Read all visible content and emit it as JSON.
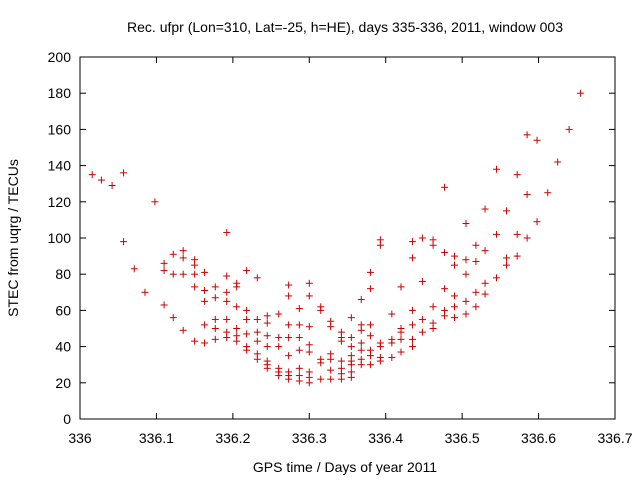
{
  "chart_data": {
    "type": "scatter",
    "title": "Rec. ufpr (Lon=310, Lat=-25, h=HE), days 335-336, 2011, window 003",
    "xlabel": "GPS time / Days of year 2011",
    "ylabel": "STEC from uqrg / TECUs",
    "xlim": [
      336,
      336.7
    ],
    "ylim": [
      0,
      200
    ],
    "xticks": [
      336,
      336.1,
      336.2,
      336.3,
      336.4,
      336.5,
      336.6,
      336.7
    ],
    "xtick_labels": [
      "336",
      "336.1",
      "336.2",
      "336.3",
      "336.4",
      "336.5",
      "336.6",
      "336.7"
    ],
    "yticks": [
      0,
      20,
      40,
      60,
      80,
      100,
      120,
      140,
      160,
      180,
      200
    ],
    "ytick_labels": [
      "0",
      "20",
      "40",
      "60",
      "80",
      "100",
      "120",
      "140",
      "160",
      "180",
      "200"
    ],
    "marker": "plus",
    "marker_color": "#cc0000",
    "series": [
      {
        "name": "STEC",
        "points": [
          [
            336.016,
            135
          ],
          [
            336.028,
            132
          ],
          [
            336.042,
            129
          ],
          [
            336.057,
            136
          ],
          [
            336.057,
            98
          ],
          [
            336.071,
            83
          ],
          [
            336.085,
            70
          ],
          [
            336.098,
            120
          ],
          [
            336.11,
            86
          ],
          [
            336.11,
            82
          ],
          [
            336.11,
            63
          ],
          [
            336.122,
            91
          ],
          [
            336.122,
            80
          ],
          [
            336.122,
            56
          ],
          [
            336.135,
            93
          ],
          [
            336.135,
            89
          ],
          [
            336.135,
            80
          ],
          [
            336.135,
            49
          ],
          [
            336.15,
            88
          ],
          [
            336.15,
            85
          ],
          [
            336.15,
            80
          ],
          [
            336.15,
            73
          ],
          [
            336.15,
            43
          ],
          [
            336.163,
            81
          ],
          [
            336.163,
            71
          ],
          [
            336.163,
            65
          ],
          [
            336.163,
            52
          ],
          [
            336.163,
            42
          ],
          [
            336.177,
            73
          ],
          [
            336.177,
            67
          ],
          [
            336.177,
            55
          ],
          [
            336.177,
            50
          ],
          [
            336.177,
            44
          ],
          [
            336.192,
            103
          ],
          [
            336.192,
            79
          ],
          [
            336.192,
            70
          ],
          [
            336.192,
            65
          ],
          [
            336.192,
            55
          ],
          [
            336.192,
            48
          ],
          [
            336.192,
            45
          ],
          [
            336.205,
            75
          ],
          [
            336.205,
            73
          ],
          [
            336.205,
            62
          ],
          [
            336.205,
            50
          ],
          [
            336.205,
            46
          ],
          [
            336.205,
            43
          ],
          [
            336.218,
            82
          ],
          [
            336.218,
            60
          ],
          [
            336.218,
            55
          ],
          [
            336.218,
            47
          ],
          [
            336.218,
            40
          ],
          [
            336.218,
            38
          ],
          [
            336.232,
            78
          ],
          [
            336.232,
            55
          ],
          [
            336.232,
            48
          ],
          [
            336.232,
            43
          ],
          [
            336.232,
            36
          ],
          [
            336.232,
            33
          ],
          [
            336.245,
            57
          ],
          [
            336.245,
            53
          ],
          [
            336.245,
            46
          ],
          [
            336.245,
            40
          ],
          [
            336.245,
            32
          ],
          [
            336.245,
            30
          ],
          [
            336.245,
            28
          ],
          [
            336.26,
            58
          ],
          [
            336.26,
            45
          ],
          [
            336.26,
            40
          ],
          [
            336.26,
            28
          ],
          [
            336.26,
            26
          ],
          [
            336.26,
            24
          ],
          [
            336.273,
            74
          ],
          [
            336.273,
            68
          ],
          [
            336.273,
            52
          ],
          [
            336.273,
            45
          ],
          [
            336.273,
            35
          ],
          [
            336.273,
            26
          ],
          [
            336.273,
            24
          ],
          [
            336.273,
            22
          ],
          [
            336.287,
            61
          ],
          [
            336.287,
            52
          ],
          [
            336.287,
            45
          ],
          [
            336.287,
            38
          ],
          [
            336.287,
            28
          ],
          [
            336.287,
            24
          ],
          [
            336.287,
            21
          ],
          [
            336.3,
            75
          ],
          [
            336.3,
            68
          ],
          [
            336.3,
            51
          ],
          [
            336.3,
            41
          ],
          [
            336.3,
            37
          ],
          [
            336.3,
            26
          ],
          [
            336.3,
            23
          ],
          [
            336.3,
            20
          ],
          [
            336.315,
            62
          ],
          [
            336.315,
            60
          ],
          [
            336.315,
            33
          ],
          [
            336.315,
            31
          ],
          [
            336.315,
            22
          ],
          [
            336.328,
            54
          ],
          [
            336.328,
            51
          ],
          [
            336.328,
            36
          ],
          [
            336.328,
            33
          ],
          [
            336.328,
            27
          ],
          [
            336.328,
            22
          ],
          [
            336.342,
            48
          ],
          [
            336.342,
            45
          ],
          [
            336.342,
            43
          ],
          [
            336.342,
            32
          ],
          [
            336.342,
            28
          ],
          [
            336.342,
            25
          ],
          [
            336.342,
            22
          ],
          [
            336.355,
            56
          ],
          [
            336.355,
            45
          ],
          [
            336.355,
            40
          ],
          [
            336.355,
            35
          ],
          [
            336.355,
            32
          ],
          [
            336.355,
            30
          ],
          [
            336.355,
            26
          ],
          [
            336.355,
            23
          ],
          [
            336.368,
            66
          ],
          [
            336.368,
            52
          ],
          [
            336.368,
            49
          ],
          [
            336.368,
            42
          ],
          [
            336.368,
            38
          ],
          [
            336.368,
            33
          ],
          [
            336.368,
            30
          ],
          [
            336.38,
            81
          ],
          [
            336.38,
            72
          ],
          [
            336.38,
            52
          ],
          [
            336.38,
            46
          ],
          [
            336.38,
            38
          ],
          [
            336.38,
            35
          ],
          [
            336.38,
            30
          ],
          [
            336.393,
            99
          ],
          [
            336.393,
            96
          ],
          [
            336.393,
            42
          ],
          [
            336.393,
            40
          ],
          [
            336.393,
            34
          ],
          [
            336.393,
            32
          ],
          [
            336.408,
            58
          ],
          [
            336.408,
            44
          ],
          [
            336.408,
            42
          ],
          [
            336.408,
            34
          ],
          [
            336.42,
            73
          ],
          [
            336.42,
            50
          ],
          [
            336.42,
            48
          ],
          [
            336.42,
            44
          ],
          [
            336.42,
            37
          ],
          [
            336.435,
            98
          ],
          [
            336.435,
            89
          ],
          [
            336.435,
            60
          ],
          [
            336.435,
            52
          ],
          [
            336.435,
            44
          ],
          [
            336.435,
            40
          ],
          [
            336.448,
            100
          ],
          [
            336.448,
            76
          ],
          [
            336.448,
            55
          ],
          [
            336.448,
            48
          ],
          [
            336.462,
            99
          ],
          [
            336.462,
            96
          ],
          [
            336.462,
            62
          ],
          [
            336.462,
            53
          ],
          [
            336.462,
            50
          ],
          [
            336.477,
            128
          ],
          [
            336.477,
            92
          ],
          [
            336.477,
            72
          ],
          [
            336.477,
            60
          ],
          [
            336.477,
            57
          ],
          [
            336.49,
            90
          ],
          [
            336.49,
            85
          ],
          [
            336.49,
            68
          ],
          [
            336.49,
            62
          ],
          [
            336.49,
            56
          ],
          [
            336.505,
            108
          ],
          [
            336.505,
            88
          ],
          [
            336.505,
            80
          ],
          [
            336.505,
            65
          ],
          [
            336.505,
            58
          ],
          [
            336.518,
            96
          ],
          [
            336.518,
            87
          ],
          [
            336.518,
            70
          ],
          [
            336.518,
            62
          ],
          [
            336.53,
            116
          ],
          [
            336.53,
            93
          ],
          [
            336.53,
            75
          ],
          [
            336.53,
            69
          ],
          [
            336.545,
            138
          ],
          [
            336.545,
            102
          ],
          [
            336.545,
            78
          ],
          [
            336.558,
            115
          ],
          [
            336.558,
            89
          ],
          [
            336.558,
            85
          ],
          [
            336.572,
            135
          ],
          [
            336.572,
            102
          ],
          [
            336.572,
            90
          ],
          [
            336.585,
            157
          ],
          [
            336.585,
            124
          ],
          [
            336.585,
            100
          ],
          [
            336.598,
            154
          ],
          [
            336.598,
            109
          ],
          [
            336.612,
            125
          ],
          [
            336.625,
            142
          ],
          [
            336.64,
            160
          ],
          [
            336.655,
            180
          ]
        ]
      }
    ]
  }
}
